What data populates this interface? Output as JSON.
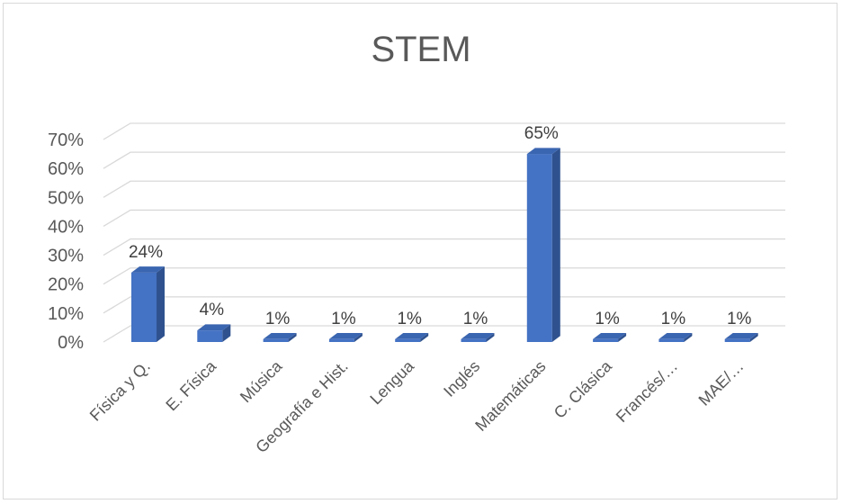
{
  "chart_data": {
    "type": "bar",
    "title": "STEM",
    "categories": [
      "Física y Q.",
      "E. Física",
      "Música",
      "Geografía e Hist.",
      "Lengua",
      "Inglés",
      "Matemáticas",
      "C. Clásica",
      "Francés/…",
      "MAE/…"
    ],
    "values": [
      24,
      4,
      1,
      1,
      1,
      1,
      65,
      1,
      1,
      1
    ],
    "data_labels": [
      "24%",
      "4%",
      "1%",
      "1%",
      "1%",
      "1%",
      "65%",
      "1%",
      "1%",
      "1%"
    ],
    "ylim": [
      0,
      70
    ],
    "y_ticks": [
      "0%",
      "10%",
      "20%",
      "30%",
      "40%",
      "50%",
      "60%",
      "70%"
    ],
    "grid": true,
    "legend": "none",
    "bar_color": "#4472C4",
    "bar_side_color": "#2F528F",
    "bar_top_color": "#3A65B0"
  }
}
